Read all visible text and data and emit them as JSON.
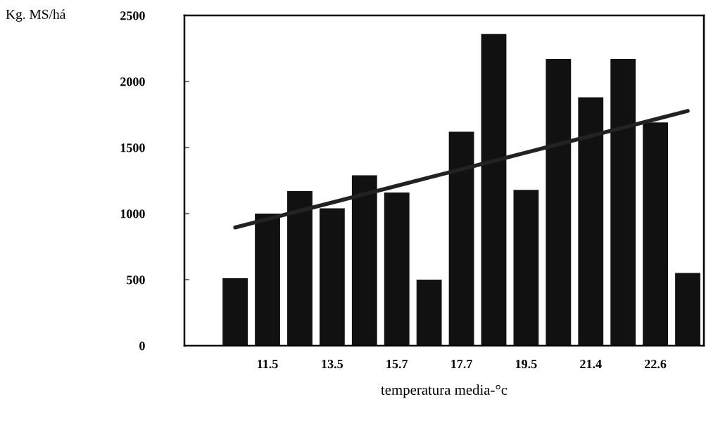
{
  "chart_data": {
    "type": "bar",
    "xlabel": "temperatura media-°c",
    "ylabel": "Kg. MS/há",
    "categories": [
      null,
      "11.5",
      null,
      "13.5",
      null,
      "15.7",
      null,
      "17.7",
      null,
      "19.5",
      null,
      "21.4",
      null,
      "22.6",
      null
    ],
    "ylim": [
      0,
      2500
    ],
    "yticks": [
      0,
      500,
      1000,
      1500,
      2000,
      2500
    ],
    "grid": false,
    "legend": false,
    "series": [
      {
        "color": "#111111",
        "values": [
          510,
          1000,
          1170,
          1040,
          1290,
          1160,
          500,
          1620,
          2360,
          1180,
          2170,
          1880,
          2170,
          1690,
          550
        ]
      },
      {
        "type": "line",
        "color": "#222222",
        "line_style": "solid",
        "values": [
          895,
          958,
          1021,
          1084,
          1147,
          1210,
          1273,
          1336,
          1399,
          1462,
          1525,
          1588,
          1651,
          1714,
          1777
        ]
      }
    ]
  }
}
